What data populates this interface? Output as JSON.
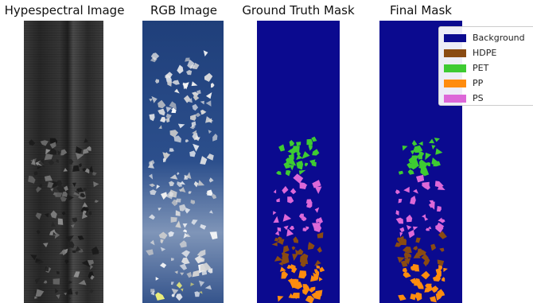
{
  "panels": {
    "hyperspectral": {
      "title": "Hypespectral Image"
    },
    "rgb": {
      "title": "RGB Image"
    },
    "ground_truth": {
      "title": "Ground Truth Mask"
    },
    "final": {
      "title": "Final Mask"
    }
  },
  "legend": {
    "items": [
      {
        "label": "Background",
        "color": "#0b0a8f"
      },
      {
        "label": "HDPE",
        "color": "#8a4b12"
      },
      {
        "label": "PET",
        "color": "#3ecb32"
      },
      {
        "label": "PP",
        "color": "#ff8c0e"
      },
      {
        "label": "PS",
        "color": "#dd68d8"
      }
    ]
  },
  "colors": {
    "hyperspectral_bg": "#2a2a2a",
    "rgb_bg": "#254680",
    "mask_bg": "#0b0a8f",
    "flake_light": "#e8ecef"
  }
}
